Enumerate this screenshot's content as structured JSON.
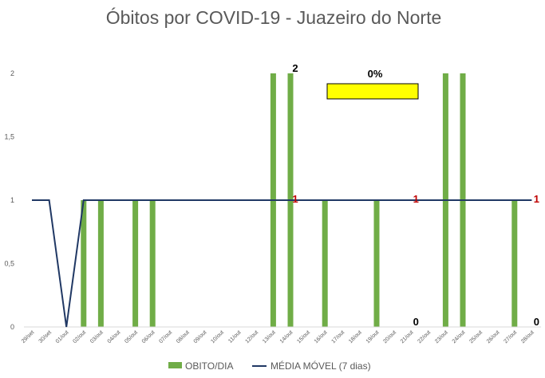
{
  "chart_data": {
    "type": "bar",
    "title": "Óbitos por COVID-19 - Juazeiro do Norte",
    "categories": [
      "29/set",
      "30/set",
      "01/out",
      "02/out",
      "03/out",
      "04/out",
      "05/out",
      "06/out",
      "07/out",
      "08/out",
      "09/out",
      "10/out",
      "11/out",
      "12/out",
      "13/out",
      "14/out",
      "15/out",
      "16/out",
      "17/out",
      "18/out",
      "19/out",
      "20/out",
      "21/out",
      "22/out",
      "23/out",
      "24/out",
      "25/out",
      "26/out",
      "27/out",
      "28/out"
    ],
    "series": [
      {
        "name": "OBITO/DIA",
        "type": "bar",
        "color": "#70AD47",
        "values": [
          0,
          0,
          0,
          1,
          1,
          0,
          1,
          1,
          0,
          0,
          0,
          0,
          0,
          0,
          2,
          2,
          0,
          1,
          0,
          0,
          1,
          0,
          0,
          0,
          2,
          2,
          0,
          0,
          1,
          0
        ]
      },
      {
        "name": "MÉDIA MÓVEL (7 dias)",
        "type": "line",
        "color": "#203864",
        "values": [
          1,
          1,
          0,
          1,
          1,
          1,
          1,
          1,
          1,
          1,
          1,
          1,
          1,
          1,
          1,
          1,
          1,
          1,
          1,
          1,
          1,
          1,
          1,
          1,
          1,
          1,
          1,
          1,
          1,
          1
        ]
      }
    ],
    "yticks": [
      "0",
      "0,5",
      "1",
      "1,5",
      "2"
    ],
    "ylim": [
      0,
      2
    ],
    "grid": false,
    "legend": "bottom",
    "annotations": [
      {
        "text": "2",
        "category": "14/out",
        "value": 2,
        "color": "#000000"
      },
      {
        "text": "1",
        "category": "14/out",
        "value": 1,
        "color": "#C00000"
      },
      {
        "text": "1",
        "category": "21/out",
        "value": 1,
        "color": "#C00000"
      },
      {
        "text": "1",
        "category": "28/out",
        "value": 1,
        "color": "#C00000"
      },
      {
        "text": "0",
        "category": "21/out",
        "value": 0,
        "color": "#000000"
      },
      {
        "text": "0",
        "category": "28/out",
        "value": 0,
        "color": "#000000"
      }
    ],
    "highlight_box": {
      "text": "0%",
      "fill": "#FFFF00"
    }
  }
}
